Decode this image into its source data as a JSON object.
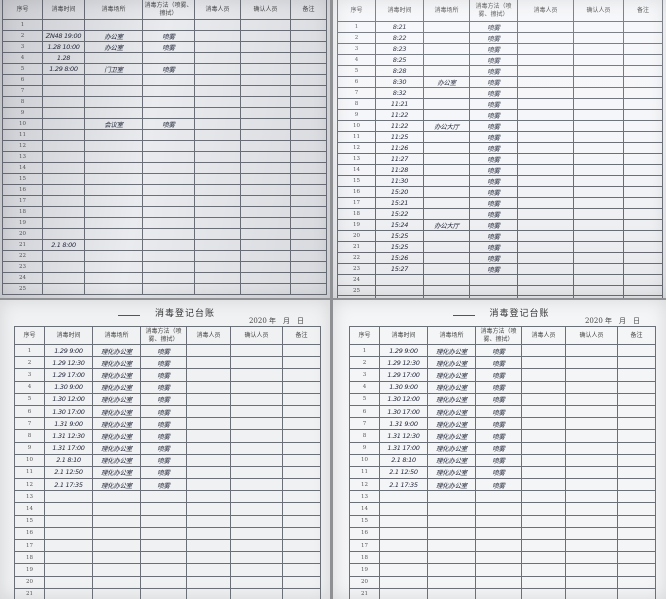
{
  "headers": {
    "seq": "序号",
    "time": "消毒时间",
    "place": "消毒场所",
    "method": "消毒方法（喷雾、擦拭）",
    "person": "消毒人员",
    "confirm": "确认人员",
    "note": "备注"
  },
  "sheet_title": "消毒登记台账",
  "date_text": "2020 年　月　日",
  "sheets": {
    "top_left": {
      "rows": [
        [
          "1",
          "",
          "",
          "",
          "",
          "",
          ""
        ],
        [
          "2",
          "ZN48  19:00",
          "办公室",
          "喷雾",
          "",
          "",
          ""
        ],
        [
          "3",
          "1.28  10:00",
          "办公室",
          "喷雾",
          "",
          "",
          ""
        ],
        [
          "4",
          "1.28",
          "",
          "",
          "",
          "",
          ""
        ],
        [
          "5",
          "1.29  8:00",
          "门卫室",
          "喷雾",
          "",
          "",
          ""
        ],
        [
          "6",
          "",
          "",
          "",
          "",
          "",
          ""
        ],
        [
          "7",
          "",
          "",
          "",
          "",
          "",
          ""
        ],
        [
          "8",
          "",
          "",
          "",
          "",
          "",
          ""
        ],
        [
          "9",
          "",
          "",
          "",
          "",
          "",
          ""
        ],
        [
          "10",
          "",
          "会议室",
          "喷雾",
          "",
          "",
          ""
        ],
        [
          "11",
          "",
          "",
          "",
          "",
          "",
          ""
        ],
        [
          "12",
          "",
          "",
          "",
          "",
          "",
          ""
        ],
        [
          "13",
          "",
          "",
          "",
          "",
          "",
          ""
        ],
        [
          "14",
          "",
          "",
          "",
          "",
          "",
          ""
        ],
        [
          "15",
          "",
          "",
          "",
          "",
          "",
          ""
        ],
        [
          "16",
          "",
          "",
          "",
          "",
          "",
          ""
        ],
        [
          "17",
          "",
          "",
          "",
          "",
          "",
          ""
        ],
        [
          "18",
          "",
          "",
          "",
          "",
          "",
          ""
        ],
        [
          "19",
          "",
          "",
          "",
          "",
          "",
          ""
        ],
        [
          "20",
          "",
          "",
          "",
          "",
          "",
          ""
        ],
        [
          "21",
          "2.1  8:00",
          "",
          "",
          "",
          "",
          ""
        ],
        [
          "22",
          "",
          "",
          "",
          "",
          "",
          ""
        ],
        [
          "23",
          "",
          "",
          "",
          "",
          "",
          ""
        ],
        [
          "24",
          "",
          "",
          "",
          "",
          "",
          ""
        ],
        [
          "25",
          "",
          "",
          "",
          "",
          "",
          ""
        ]
      ]
    },
    "top_right": {
      "rows": [
        [
          "1",
          "8:21",
          "",
          "喷雾",
          "",
          "",
          ""
        ],
        [
          "2",
          "8:22",
          "",
          "喷雾",
          "",
          "",
          ""
        ],
        [
          "3",
          "8:23",
          "",
          "喷雾",
          "",
          "",
          ""
        ],
        [
          "4",
          "8:25",
          "",
          "喷雾",
          "",
          "",
          ""
        ],
        [
          "5",
          "8:28",
          "",
          "喷雾",
          "",
          "",
          ""
        ],
        [
          "6",
          "8:30",
          "办公室",
          "喷雾",
          "",
          "",
          ""
        ],
        [
          "7",
          "8:32",
          "",
          "喷雾",
          "",
          "",
          ""
        ],
        [
          "8",
          "11:21",
          "",
          "喷雾",
          "",
          "",
          ""
        ],
        [
          "9",
          "11:22",
          "",
          "喷雾",
          "",
          "",
          ""
        ],
        [
          "10",
          "11:22",
          "办公大厅",
          "喷雾",
          "",
          "",
          ""
        ],
        [
          "11",
          "11:25",
          "",
          "喷雾",
          "",
          "",
          ""
        ],
        [
          "12",
          "11:26",
          "",
          "喷雾",
          "",
          "",
          ""
        ],
        [
          "13",
          "11:27",
          "",
          "喷雾",
          "",
          "",
          ""
        ],
        [
          "14",
          "11:28",
          "",
          "喷雾",
          "",
          "",
          ""
        ],
        [
          "15",
          "11:30",
          "",
          "喷雾",
          "",
          "",
          ""
        ],
        [
          "16",
          "15:20",
          "",
          "喷雾",
          "",
          "",
          ""
        ],
        [
          "17",
          "15:21",
          "",
          "喷雾",
          "",
          "",
          ""
        ],
        [
          "18",
          "15:22",
          "",
          "喷雾",
          "",
          "",
          ""
        ],
        [
          "19",
          "15:24",
          "办公大厅",
          "喷雾",
          "",
          "",
          ""
        ],
        [
          "20",
          "15:25",
          "",
          "喷雾",
          "",
          "",
          ""
        ],
        [
          "21",
          "15:25",
          "",
          "喷雾",
          "",
          "",
          ""
        ],
        [
          "22",
          "15:26",
          "",
          "喷雾",
          "",
          "",
          ""
        ],
        [
          "23",
          "15:27",
          "",
          "喷雾",
          "",
          "",
          ""
        ],
        [
          "24",
          "",
          "",
          "",
          "",
          "",
          ""
        ],
        [
          "25",
          "",
          "",
          "",
          "",
          "",
          ""
        ],
        [
          "26",
          "",
          "",
          "",
          "",
          "",
          ""
        ]
      ]
    },
    "bottom_left": {
      "rows": [
        [
          "1",
          "1.29  9:00",
          "理化办公室",
          "喷雾",
          "",
          "",
          ""
        ],
        [
          "2",
          "1.29  12:30",
          "理化办公室",
          "喷雾",
          "",
          "",
          ""
        ],
        [
          "3",
          "1.29  17:00",
          "理化办公室",
          "喷雾",
          "",
          "",
          ""
        ],
        [
          "4",
          "1.30  9:00",
          "理化办公室",
          "喷雾",
          "",
          "",
          ""
        ],
        [
          "5",
          "1.30  12:00",
          "理化办公室",
          "喷雾",
          "",
          "",
          ""
        ],
        [
          "6",
          "1.30  17:00",
          "理化办公室",
          "喷雾",
          "",
          "",
          ""
        ],
        [
          "7",
          "1.31  9:00",
          "理化办公室",
          "喷雾",
          "",
          "",
          ""
        ],
        [
          "8",
          "1.31  12:30",
          "理化办公室",
          "喷雾",
          "",
          "",
          ""
        ],
        [
          "9",
          "1.31  17:00",
          "理化办公室",
          "喷雾",
          "",
          "",
          ""
        ],
        [
          "10",
          "2.1  8:10",
          "理化办公室",
          "喷雾",
          "",
          "",
          ""
        ],
        [
          "11",
          "2.1  12:50",
          "理化办公室",
          "喷雾",
          "",
          "",
          ""
        ],
        [
          "12",
          "2.1  17:35",
          "理化办公室",
          "喷雾",
          "",
          "",
          ""
        ],
        [
          "13",
          "",
          "",
          "",
          "",
          "",
          ""
        ],
        [
          "14",
          "",
          "",
          "",
          "",
          "",
          ""
        ],
        [
          "15",
          "",
          "",
          "",
          "",
          "",
          ""
        ],
        [
          "16",
          "",
          "",
          "",
          "",
          "",
          ""
        ],
        [
          "17",
          "",
          "",
          "",
          "",
          "",
          ""
        ],
        [
          "18",
          "",
          "",
          "",
          "",
          "",
          ""
        ],
        [
          "19",
          "",
          "",
          "",
          "",
          "",
          ""
        ],
        [
          "20",
          "",
          "",
          "",
          "",
          "",
          ""
        ],
        [
          "21",
          "",
          "",
          "",
          "",
          "",
          ""
        ]
      ]
    },
    "bottom_right": {
      "rows": [
        [
          "1",
          "1.29  9:00",
          "理化办公室",
          "喷雾",
          "",
          "",
          ""
        ],
        [
          "2",
          "1.29  12:30",
          "理化办公室",
          "喷雾",
          "",
          "",
          ""
        ],
        [
          "3",
          "1.29  17:00",
          "理化办公室",
          "喷雾",
          "",
          "",
          ""
        ],
        [
          "4",
          "1.30  9:00",
          "理化办公室",
          "喷雾",
          "",
          "",
          ""
        ],
        [
          "5",
          "1.30  12:00",
          "理化办公室",
          "喷雾",
          "",
          "",
          ""
        ],
        [
          "6",
          "1.30  17:00",
          "理化办公室",
          "喷雾",
          "",
          "",
          ""
        ],
        [
          "7",
          "1.31  9:00",
          "理化办公室",
          "喷雾",
          "",
          "",
          ""
        ],
        [
          "8",
          "1.31  12:30",
          "理化办公室",
          "喷雾",
          "",
          "",
          ""
        ],
        [
          "9",
          "1.31  17:00",
          "理化办公室",
          "喷雾",
          "",
          "",
          ""
        ],
        [
          "10",
          "2.1  8:10",
          "理化办公室",
          "喷雾",
          "",
          "",
          ""
        ],
        [
          "11",
          "2.1  12:50",
          "理化办公室",
          "喷雾",
          "",
          "",
          ""
        ],
        [
          "12",
          "2.1  17:35",
          "理化办公室",
          "喷雾",
          "",
          "",
          ""
        ],
        [
          "13",
          "",
          "",
          "",
          "",
          "",
          ""
        ],
        [
          "14",
          "",
          "",
          "",
          "",
          "",
          ""
        ],
        [
          "15",
          "",
          "",
          "",
          "",
          "",
          ""
        ],
        [
          "16",
          "",
          "",
          "",
          "",
          "",
          ""
        ],
        [
          "17",
          "",
          "",
          "",
          "",
          "",
          ""
        ],
        [
          "18",
          "",
          "",
          "",
          "",
          "",
          ""
        ],
        [
          "19",
          "",
          "",
          "",
          "",
          "",
          ""
        ],
        [
          "20",
          "",
          "",
          "",
          "",
          "",
          ""
        ],
        [
          "21",
          "",
          "",
          "",
          "",
          "",
          ""
        ]
      ]
    }
  }
}
